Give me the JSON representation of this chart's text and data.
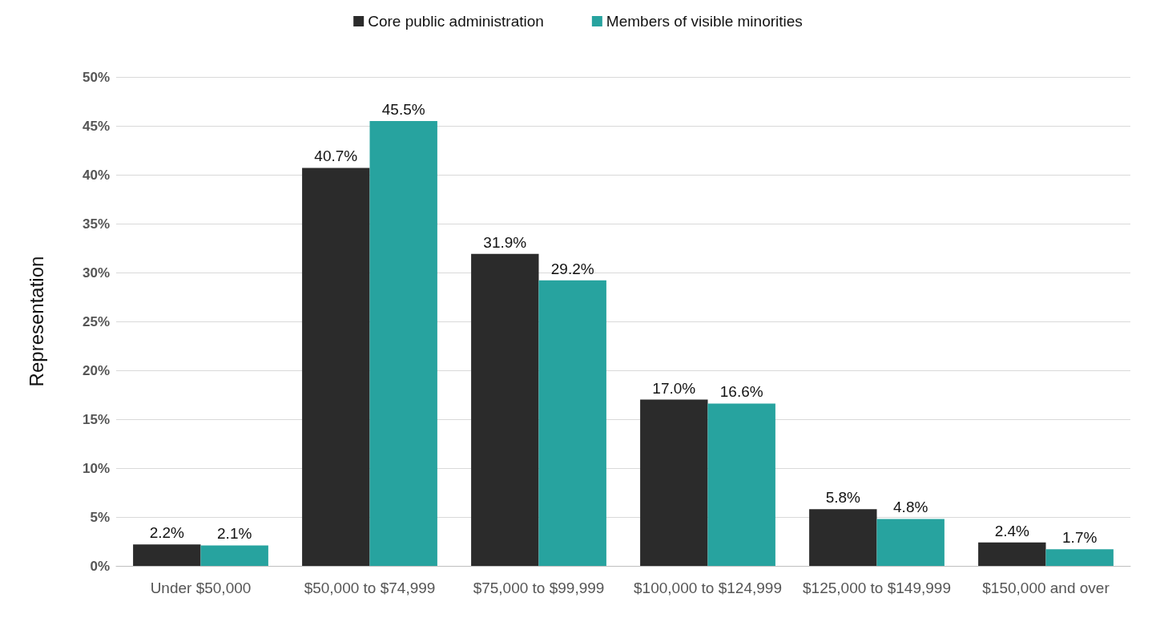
{
  "chart_data": {
    "type": "bar",
    "ylabel": "Representation",
    "categories": [
      "Under $50,000",
      "$50,000 to $74,999",
      "$75,000 to $99,999",
      "$100,000 to $124,999",
      "$125,000 to $149,999",
      "$150,000 and over"
    ],
    "series": [
      {
        "name": "Core public administration",
        "color": "#2b2b2b",
        "values": [
          2.2,
          40.7,
          31.9,
          17.0,
          5.8,
          2.4
        ],
        "value_labels": [
          "2.2%",
          "40.7%",
          "31.9%",
          "17.0%",
          "5.8%",
          "2.4%"
        ]
      },
      {
        "name": "Members of visible minorities",
        "color": "#27a39f",
        "values": [
          2.1,
          45.5,
          29.2,
          16.6,
          4.8,
          1.7
        ],
        "value_labels": [
          "2.1%",
          "45.5%",
          "29.2%",
          "16.6%",
          "4.8%",
          "1.7%"
        ]
      }
    ],
    "ylim": [
      0,
      50
    ],
    "yticks": [
      {
        "value": 0,
        "label": "0%"
      },
      {
        "value": 5,
        "label": "5%"
      },
      {
        "value": 10,
        "label": "10%"
      },
      {
        "value": 15,
        "label": "15%"
      },
      {
        "value": 20,
        "label": "20%"
      },
      {
        "value": 25,
        "label": "25%"
      },
      {
        "value": 30,
        "label": "30%"
      },
      {
        "value": 35,
        "label": "35%"
      },
      {
        "value": 40,
        "label": "40%"
      },
      {
        "value": 45,
        "label": "45%"
      },
      {
        "value": 50,
        "label": "50%"
      }
    ],
    "grid": "y",
    "legend": "top"
  }
}
